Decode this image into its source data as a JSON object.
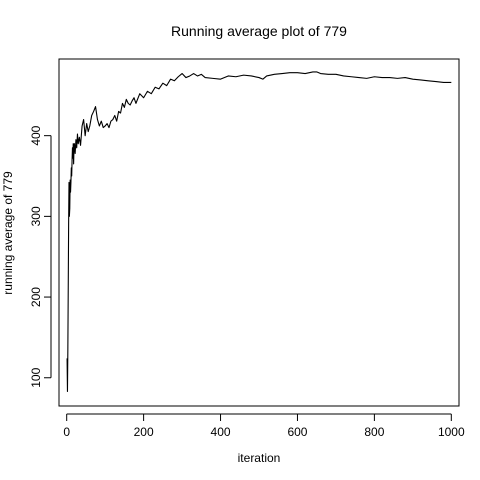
{
  "chart_data": {
    "type": "line",
    "title": "Running average plot of 779",
    "xlabel": "iteration",
    "ylabel": "running average of 779",
    "xlim": [
      -20,
      1020
    ],
    "ylim": [
      65,
      495
    ],
    "xticks": [
      0,
      200,
      400,
      600,
      800,
      1000
    ],
    "yticks": [
      100,
      200,
      300,
      400
    ],
    "grid": false,
    "line_color": "#000000",
    "series": [
      {
        "x": [
          1,
          2,
          3,
          4,
          5,
          6,
          7,
          8,
          9,
          10,
          11,
          12,
          13,
          14,
          15,
          16,
          17,
          18,
          19,
          20,
          22,
          24,
          26,
          28,
          30,
          33,
          36,
          40,
          44,
          48,
          52,
          56,
          60,
          65,
          70,
          75,
          80,
          85,
          90,
          95,
          100,
          105,
          110,
          115,
          120,
          125,
          130,
          135,
          140,
          145,
          150,
          155,
          160,
          165,
          170,
          175,
          180,
          190,
          200,
          210,
          220,
          230,
          240,
          250,
          260,
          270,
          280,
          290,
          300,
          310,
          320,
          330,
          340,
          350,
          360,
          380,
          400,
          420,
          440,
          460,
          480,
          500,
          510,
          520,
          540,
          560,
          580,
          600,
          620,
          640,
          650,
          660,
          680,
          700,
          720,
          740,
          760,
          780,
          800,
          820,
          840,
          860,
          880,
          900,
          920,
          940,
          960,
          980,
          1000
        ],
        "values": [
          124,
          83,
          135,
          210,
          290,
          342,
          300,
          310,
          345,
          330,
          342,
          360,
          350,
          370,
          385,
          372,
          390,
          365,
          385,
          390,
          378,
          395,
          385,
          402,
          390,
          398,
          388,
          412,
          420,
          400,
          415,
          405,
          412,
          425,
          430,
          436,
          420,
          412,
          418,
          410,
          412,
          415,
          410,
          418,
          420,
          425,
          418,
          430,
          428,
          440,
          435,
          445,
          440,
          438,
          443,
          447,
          440,
          452,
          447,
          455,
          452,
          460,
          458,
          465,
          462,
          470,
          468,
          473,
          477,
          472,
          474,
          477,
          474,
          476,
          472,
          471,
          470,
          474,
          473,
          475,
          474,
          472,
          470,
          474,
          476,
          477,
          478,
          478,
          477,
          479,
          479,
          477,
          476,
          476,
          474,
          473,
          472,
          471,
          473,
          472,
          472,
          471,
          472,
          470,
          469,
          468,
          467,
          466,
          466
        ]
      }
    ]
  }
}
